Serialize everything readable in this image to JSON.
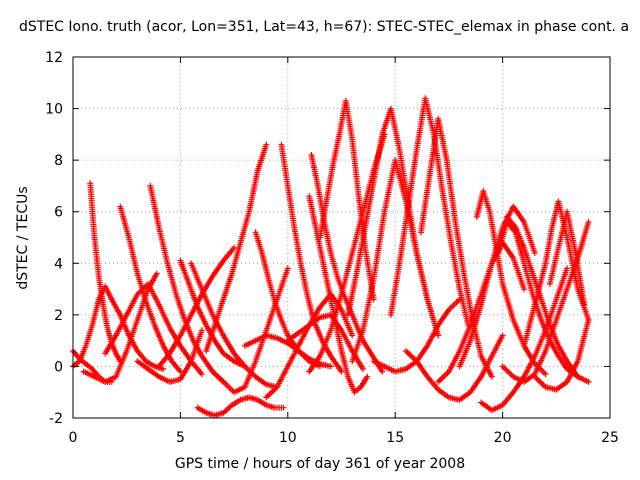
{
  "chart_data": {
    "type": "scatter",
    "title": "dSTEC Iono. truth (acor, Lon=351, Lat=43, h=67): STEC-STEC_elemax in phase cont. a",
    "xlabel": "GPS time / hours of day 361 of year 2008",
    "ylabel": "dSTEC  / TECUs",
    "xlim": [
      0,
      25
    ],
    "ylim": [
      -2,
      12
    ],
    "xticks": [
      0,
      5,
      10,
      15,
      20,
      25
    ],
    "yticks": [
      -2,
      0,
      2,
      4,
      6,
      8,
      10,
      12
    ],
    "xtick_labels": [
      "0",
      "5",
      "10",
      "15",
      "20",
      "25"
    ],
    "ytick_labels": [
      "-2",
      "0",
      "2",
      "4",
      "6",
      "8",
      "10",
      "12"
    ],
    "grid": true,
    "marker": "+",
    "series": [
      {
        "color": "#ff0000",
        "arcs": [
          {
            "x": [
              0.0,
              0.3,
              0.6,
              0.9,
              1.2,
              1.5,
              1.8
            ],
            "y": [
              0.6,
              0.3,
              0.1,
              -0.1,
              -0.4,
              -0.6,
              -0.6
            ]
          },
          {
            "x": [
              0.8,
              1.0,
              1.2,
              1.4,
              1.6,
              1.8,
              2.0,
              2.2
            ],
            "y": [
              7.1,
              5.0,
              3.5,
              2.4,
              1.5,
              0.9,
              0.5,
              0.2
            ]
          },
          {
            "x": [
              0.0,
              0.3,
              0.6,
              0.9,
              1.2,
              1.5,
              1.8,
              2.2,
              2.6,
              3.0,
              3.4,
              3.8,
              4.2
            ],
            "y": [
              0.0,
              0.2,
              0.8,
              1.6,
              2.6,
              3.1,
              2.6,
              2.0,
              1.2,
              0.6,
              0.2,
              0.0,
              -0.1
            ]
          },
          {
            "x": [
              0.5,
              1.0,
              1.5,
              2.0,
              2.5,
              3.0,
              3.5,
              3.9
            ],
            "y": [
              -0.2,
              -0.4,
              -0.6,
              -0.4,
              0.6,
              1.8,
              3.0,
              3.6
            ]
          },
          {
            "x": [
              2.2,
              2.6,
              3.0,
              3.4,
              3.8,
              4.2,
              4.6,
              5.0
            ],
            "y": [
              6.2,
              5.0,
              3.6,
              2.5,
              1.6,
              0.8,
              0.2,
              -0.2
            ]
          },
          {
            "x": [
              1.5,
              2.0,
              2.5,
              3.0,
              3.5,
              4.0,
              4.5,
              5.0,
              5.5,
              6.0
            ],
            "y": [
              0.5,
              1.2,
              2.0,
              2.8,
              3.2,
              2.4,
              1.5,
              0.8,
              0.2,
              -0.3
            ]
          },
          {
            "x": [
              3.6,
              4.0,
              4.4,
              4.8,
              5.2,
              5.6,
              6.0,
              6.5,
              7.0
            ],
            "y": [
              7.0,
              5.4,
              4.0,
              2.8,
              1.8,
              1.0,
              0.4,
              -0.2,
              -0.6
            ]
          },
          {
            "x": [
              3.0,
              3.5,
              4.0,
              4.5,
              5.0,
              5.5,
              6.0
            ],
            "y": [
              0.2,
              -0.1,
              -0.4,
              -0.6,
              -0.5,
              0.2,
              1.4
            ]
          },
          {
            "x": [
              5.0,
              5.4,
              5.8,
              6.2,
              6.6,
              7.0,
              7.5,
              8.0
            ],
            "y": [
              4.1,
              3.2,
              2.3,
              1.6,
              1.0,
              0.5,
              0.2,
              0.0
            ]
          },
          {
            "x": [
              4.0,
              4.5,
              5.0,
              5.5,
              6.0,
              6.5,
              7.0,
              7.5
            ],
            "y": [
              0.0,
              0.5,
              1.2,
              2.0,
              2.8,
              3.5,
              4.1,
              4.6
            ]
          },
          {
            "x": [
              5.5,
              6.0,
              6.5,
              7.0,
              7.5,
              8.0,
              8.5,
              9.0,
              9.5
            ],
            "y": [
              4.0,
              3.0,
              2.0,
              1.2,
              0.5,
              0.0,
              -0.4,
              -0.7,
              -0.8
            ]
          },
          {
            "x": [
              5.8,
              6.2,
              6.6,
              7.0,
              7.4,
              7.8,
              8.2,
              8.6,
              9.0,
              9.4,
              9.8
            ],
            "y": [
              -1.6,
              -1.8,
              -1.9,
              -1.8,
              -1.5,
              -1.3,
              -1.2,
              -1.3,
              -1.5,
              -1.6,
              -1.6
            ]
          },
          {
            "x": [
              6.2,
              6.6,
              7.0,
              7.4,
              7.8,
              8.2,
              8.6,
              9.0
            ],
            "y": [
              0.6,
              1.6,
              2.6,
              3.6,
              4.8,
              6.0,
              7.6,
              8.6
            ]
          },
          {
            "x": [
              6.5,
              7.0,
              7.5,
              8.0,
              8.5,
              9.0,
              9.5,
              10.0
            ],
            "y": [
              -0.2,
              -0.6,
              -1.0,
              -0.8,
              0.2,
              1.4,
              2.6,
              3.8
            ]
          },
          {
            "x": [
              8.5,
              8.8,
              9.1,
              9.4,
              9.7,
              10.0,
              10.5,
              11.0,
              11.5
            ],
            "y": [
              5.2,
              4.4,
              3.4,
              2.5,
              1.8,
              1.2,
              0.6,
              0.2,
              0.0
            ]
          },
          {
            "x": [
              8.0,
              8.5,
              9.0,
              9.5,
              10.0,
              10.5,
              11.0,
              11.5,
              12.0
            ],
            "y": [
              0.8,
              1.0,
              1.2,
              1.1,
              0.9,
              0.6,
              0.3,
              0.1,
              0.0
            ]
          },
          {
            "x": [
              9.0,
              9.5,
              10.0,
              10.5,
              11.0,
              11.5,
              12.0,
              12.5,
              13.0
            ],
            "y": [
              -1.2,
              -0.8,
              0.0,
              0.8,
              1.6,
              2.3,
              2.8,
              2.2,
              1.2
            ]
          },
          {
            "x": [
              9.7,
              10.0,
              10.3,
              10.6,
              10.9,
              11.2,
              11.6,
              12.0,
              12.5
            ],
            "y": [
              8.6,
              7.0,
              5.4,
              4.0,
              2.8,
              1.8,
              1.0,
              0.4,
              -0.2
            ]
          },
          {
            "x": [
              10.0,
              10.5,
              11.0,
              11.5,
              12.0,
              12.5,
              13.0,
              13.5
            ],
            "y": [
              1.0,
              1.3,
              1.6,
              1.9,
              2.0,
              1.4,
              0.6,
              -0.1
            ]
          },
          {
            "x": [
              11.0,
              11.3,
              11.6,
              11.9,
              12.2,
              12.5,
              12.8,
              13.1,
              13.4,
              13.7
            ],
            "y": [
              6.6,
              5.4,
              4.2,
              3.0,
              1.8,
              0.6,
              -0.4,
              -1.0,
              -0.8,
              -0.4
            ]
          },
          {
            "x": [
              11.1,
              11.4,
              11.7,
              12.0,
              12.3,
              12.6,
              12.9,
              13.2,
              13.5,
              13.8,
              14.1,
              14.4
            ],
            "y": [
              8.2,
              7.0,
              5.6,
              4.4,
              3.5,
              2.8,
              2.2,
              1.6,
              1.0,
              0.6,
              0.2,
              -0.2
            ]
          },
          {
            "x": [
              11.0,
              11.5,
              12.0,
              12.5,
              13.0,
              13.5,
              14.0,
              14.5
            ],
            "y": [
              -0.2,
              0.4,
              1.4,
              2.8,
              4.4,
              6.0,
              7.6,
              9.0
            ]
          },
          {
            "x": [
              11.5,
              11.8,
              12.1,
              12.4,
              12.7,
              13.0,
              13.3,
              13.6,
              14.0
            ],
            "y": [
              5.0,
              6.4,
              7.8,
              9.0,
              10.3,
              8.8,
              6.6,
              4.6,
              2.6
            ]
          },
          {
            "x": [
              12.8,
              13.2,
              13.6,
              14.0,
              14.4,
              14.8,
              15.2,
              15.6,
              16.0,
              16.5
            ],
            "y": [
              2.0,
              3.6,
              5.4,
              7.2,
              9.0,
              10.0,
              8.4,
              6.4,
              4.4,
              2.6
            ]
          },
          {
            "x": [
              13.0,
              13.5,
              14.0,
              14.5,
              15.0,
              15.5,
              16.0,
              16.5,
              17.0
            ],
            "y": [
              0.2,
              1.4,
              3.4,
              6.0,
              8.0,
              6.4,
              4.4,
              2.6,
              1.2
            ]
          },
          {
            "x": [
              14.0,
              14.5,
              15.0,
              15.5,
              16.0,
              16.5,
              17.0,
              17.5,
              18.0
            ],
            "y": [
              0.2,
              0.0,
              -0.2,
              -0.1,
              0.2,
              0.8,
              1.6,
              2.2,
              2.6
            ]
          },
          {
            "x": [
              14.8,
              15.2,
              15.6,
              16.0,
              16.4,
              16.8,
              17.2,
              17.6,
              18.0,
              18.4
            ],
            "y": [
              2.0,
              4.0,
              6.2,
              8.4,
              10.4,
              9.0,
              6.8,
              4.8,
              3.0,
              1.6
            ]
          },
          {
            "x": [
              16.2,
              16.6,
              17.0,
              17.4,
              17.8,
              18.2,
              18.6,
              19.0,
              19.5
            ],
            "y": [
              5.2,
              7.4,
              9.6,
              8.0,
              5.6,
              3.6,
              1.8,
              0.4,
              -0.4
            ]
          },
          {
            "x": [
              15.5,
              16.0,
              16.5,
              17.0,
              17.5,
              18.0,
              18.5,
              19.0,
              19.5,
              20.0
            ],
            "y": [
              0.6,
              0.2,
              -0.4,
              -0.9,
              -1.2,
              -1.3,
              -1.0,
              -0.4,
              0.4,
              1.2
            ]
          },
          {
            "x": [
              17.0,
              17.5,
              18.0,
              18.5,
              19.0,
              19.5,
              20.0,
              20.5,
              21.0
            ],
            "y": [
              -0.6,
              -0.2,
              0.6,
              1.6,
              2.8,
              4.0,
              4.8,
              4.2,
              3.0
            ]
          },
          {
            "x": [
              18.0,
              18.5,
              19.0,
              19.5,
              20.0,
              20.5,
              21.0,
              21.5
            ],
            "y": [
              0.0,
              1.0,
              2.4,
              4.0,
              5.4,
              6.2,
              5.6,
              4.4
            ]
          },
          {
            "x": [
              18.8,
              19.1,
              19.4,
              19.7,
              20.0,
              20.5,
              21.0,
              21.5,
              22.0
            ],
            "y": [
              5.8,
              6.8,
              6.0,
              4.6,
              3.2,
              1.8,
              0.8,
              0.1,
              -0.3
            ]
          },
          {
            "x": [
              19.0,
              19.5,
              20.0,
              20.5,
              21.0,
              21.5,
              22.0,
              22.5,
              23.0
            ],
            "y": [
              -1.4,
              -1.7,
              -1.5,
              -1.0,
              -0.4,
              0.4,
              1.4,
              2.6,
              3.8
            ]
          },
          {
            "x": [
              19.8,
              20.2,
              20.6,
              21.0,
              21.4,
              21.8,
              22.2,
              22.6,
              23.0,
              23.5
            ],
            "y": [
              4.4,
              5.6,
              5.2,
              4.0,
              2.8,
              1.8,
              1.0,
              0.4,
              -0.1,
              -0.4
            ]
          },
          {
            "x": [
              20.2,
              20.6,
              21.0,
              21.4,
              21.8,
              22.2,
              22.6,
              23.0,
              23.5,
              24.0
            ],
            "y": [
              5.8,
              5.4,
              4.6,
              3.6,
              2.6,
              1.6,
              0.8,
              0.2,
              -0.4,
              -0.6
            ]
          },
          {
            "x": [
              20.0,
              20.5,
              21.0,
              21.5,
              22.0,
              22.5,
              23.0,
              23.5,
              24.0
            ],
            "y": [
              0.0,
              -0.4,
              -0.6,
              -0.3,
              0.6,
              1.8,
              3.0,
              4.2,
              5.6
            ]
          },
          {
            "x": [
              21.0,
              21.5,
              22.0,
              22.3,
              22.6,
              23.0,
              23.5,
              24.0
            ],
            "y": [
              0.8,
              2.4,
              4.0,
              5.4,
              6.4,
              5.0,
              3.0,
              1.8
            ]
          },
          {
            "x": [
              21.5,
              22.0,
              22.5,
              23.0,
              23.5,
              24.0
            ],
            "y": [
              -0.4,
              -0.8,
              -0.9,
              -0.6,
              0.2,
              1.8
            ]
          },
          {
            "x": [
              22.2,
              22.6,
              23.0,
              23.4,
              23.8
            ],
            "y": [
              3.2,
              4.6,
              6.0,
              4.4,
              2.4
            ]
          }
        ]
      }
    ]
  }
}
